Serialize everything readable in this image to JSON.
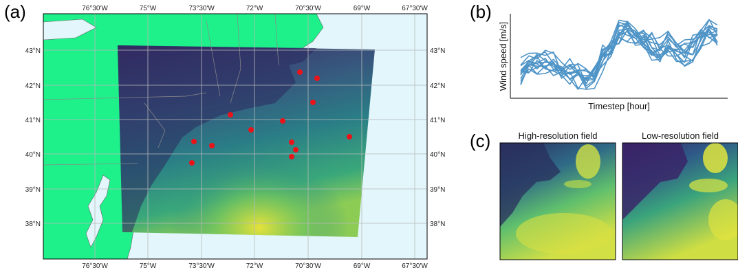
{
  "panels": {
    "a": "(a)",
    "b": "(b)",
    "c": "(c)"
  },
  "map": {
    "lon_ticks_top": [
      "76°30'W",
      "75°W",
      "73°30'W",
      "72°W",
      "70°30'W",
      "69°W",
      "67°30'W"
    ],
    "lon_ticks_bottom": [
      "76°30'W",
      "75°W",
      "73°30'W",
      "72°W",
      "70°30'W",
      "69°W",
      "67°30'W"
    ],
    "lat_ticks_left": [
      "43°N",
      "42°N",
      "41°N",
      "40°N",
      "39°N",
      "38°N"
    ],
    "lat_ticks_right": [
      "43°N",
      "42°N",
      "41°N",
      "40°N",
      "39°N",
      "38°N"
    ],
    "colors": {
      "land": "#1ef08a",
      "ocean": "#e2f6fb",
      "field_low": "#3b2d6b",
      "field_mid": "#21908c",
      "field_high": "#d9e23a",
      "station": "#e8141a"
    },
    "stations_count_shown": 14
  },
  "chart_data": {
    "type": "line",
    "xlabel": "Timestep [hour]",
    "ylabel": "Wind speed [m/s]",
    "series_color": "#4f94c7",
    "grid": false
  },
  "fields": {
    "high_title": "High-resolution field",
    "low_title": "Low-resolution field"
  }
}
